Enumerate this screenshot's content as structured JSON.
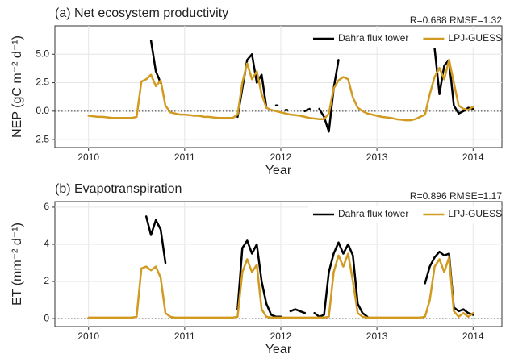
{
  "chart_data": [
    {
      "type": "line",
      "title": "(a) Net ecosystem productivity",
      "annotation": "R=0.688  RMSE=1.32",
      "x_label": "Year",
      "y_label": "NEP (gC m⁻² d⁻¹)",
      "xlim": [
        2009.65,
        2014.3
      ],
      "xticks": [
        2010,
        2011,
        2012,
        2013,
        2014
      ],
      "ylim": [
        -3.2,
        7.5
      ],
      "yticks": [
        -2.5,
        {
          "value": 0,
          "label": "0.0"
        },
        2.5,
        {
          "value": 5,
          "label": "5.0"
        }
      ],
      "grid": true,
      "reference_line": 0,
      "legend": "top-right",
      "x": [
        2010,
        2010.05,
        2010.1,
        2010.15,
        2010.2,
        2010.25,
        2010.3,
        2010.35,
        2010.4,
        2010.45,
        2010.5,
        2010.55,
        2010.6,
        2010.65,
        2010.7,
        2010.75,
        2010.8,
        2010.85,
        2010.9,
        2010.95,
        2011,
        2011.05,
        2011.1,
        2011.15,
        2011.2,
        2011.25,
        2011.3,
        2011.35,
        2011.4,
        2011.45,
        2011.5,
        2011.55,
        2011.6,
        2011.65,
        2011.7,
        2011.75,
        2011.8,
        2011.85,
        2011.9,
        2011.95,
        2012,
        2012.05,
        2012.1,
        2012.15,
        2012.2,
        2012.25,
        2012.3,
        2012.35,
        2012.4,
        2012.45,
        2012.5,
        2012.55,
        2012.6,
        2012.65,
        2012.7,
        2012.75,
        2012.8,
        2012.85,
        2012.9,
        2012.95,
        2013,
        2013.05,
        2013.1,
        2013.15,
        2013.2,
        2013.25,
        2013.3,
        2013.35,
        2013.4,
        2013.45,
        2013.5,
        2013.55,
        2013.6,
        2013.65,
        2013.7,
        2013.75,
        2013.8,
        2013.85,
        2013.9,
        2013.95,
        2014
      ],
      "series": [
        {
          "name": "Dahra flux tower",
          "color": "#000000",
          "values": [
            null,
            null,
            null,
            null,
            null,
            null,
            null,
            null,
            null,
            null,
            null,
            null,
            null,
            6.2,
            3.5,
            2.5,
            null,
            null,
            null,
            null,
            null,
            null,
            null,
            null,
            null,
            null,
            null,
            null,
            null,
            null,
            null,
            -0.5,
            2.0,
            4.5,
            5.0,
            2.5,
            3.2,
            0.3,
            null,
            0.5,
            null,
            0.1,
            null,
            null,
            null,
            0.0,
            0.2,
            null,
            0.2,
            -0.5,
            -1.8,
            2.0,
            4.5,
            null,
            null,
            null,
            null,
            null,
            null,
            null,
            null,
            null,
            null,
            null,
            null,
            null,
            null,
            null,
            null,
            null,
            null,
            null,
            5.5,
            1.5,
            4.0,
            4.5,
            0.5,
            -0.2,
            0.0,
            0.3,
            0.2
          ]
        },
        {
          "name": "LPJ-GUESS",
          "color": "#d19b22",
          "values": [
            -0.4,
            -0.45,
            -0.5,
            -0.5,
            -0.55,
            -0.6,
            -0.6,
            -0.6,
            -0.6,
            -0.6,
            -0.5,
            2.6,
            2.8,
            3.2,
            2.2,
            2.7,
            0.5,
            -0.1,
            -0.2,
            -0.3,
            -0.3,
            -0.35,
            -0.4,
            -0.4,
            -0.5,
            -0.5,
            -0.55,
            -0.6,
            -0.6,
            -0.6,
            -0.6,
            -0.3,
            2.5,
            4.2,
            2.8,
            3.5,
            1.5,
            0.3,
            0.1,
            0.0,
            -0.1,
            -0.2,
            -0.3,
            -0.35,
            -0.4,
            -0.5,
            -0.6,
            -0.65,
            -0.7,
            -0.7,
            -0.2,
            2.0,
            2.7,
            3.0,
            2.8,
            1.2,
            0.3,
            0.0,
            -0.2,
            -0.3,
            -0.4,
            -0.5,
            -0.55,
            -0.6,
            -0.7,
            -0.75,
            -0.8,
            -0.8,
            -0.7,
            -0.5,
            -0.3,
            1.5,
            3.0,
            3.8,
            2.8,
            4.5,
            2.5,
            0.5,
            0.2,
            0.1,
            0.4
          ]
        }
      ]
    },
    {
      "type": "line",
      "title": "(b) Evapotranspiration",
      "annotation": "R=0.896  RMSE=1.17",
      "x_label": "Year",
      "y_label": "ET (mm⁻² d⁻¹)",
      "xlim": [
        2009.65,
        2014.3
      ],
      "xticks": [
        2010,
        2011,
        2012,
        2013,
        2014
      ],
      "ylim": [
        -0.43,
        6.3
      ],
      "yticks": [
        0,
        2,
        4,
        6
      ],
      "grid": true,
      "reference_line": 0,
      "legend": "top-right",
      "x": [
        2010,
        2010.05,
        2010.1,
        2010.15,
        2010.2,
        2010.25,
        2010.3,
        2010.35,
        2010.4,
        2010.45,
        2010.5,
        2010.55,
        2010.6,
        2010.65,
        2010.7,
        2010.75,
        2010.8,
        2010.85,
        2010.9,
        2010.95,
        2011,
        2011.05,
        2011.1,
        2011.15,
        2011.2,
        2011.25,
        2011.3,
        2011.35,
        2011.4,
        2011.45,
        2011.5,
        2011.55,
        2011.6,
        2011.65,
        2011.7,
        2011.75,
        2011.8,
        2011.85,
        2011.9,
        2011.95,
        2012,
        2012.05,
        2012.1,
        2012.15,
        2012.2,
        2012.25,
        2012.3,
        2012.35,
        2012.4,
        2012.45,
        2012.5,
        2012.55,
        2012.6,
        2012.65,
        2012.7,
        2012.75,
        2012.8,
        2012.85,
        2012.9,
        2012.95,
        2013,
        2013.05,
        2013.1,
        2013.15,
        2013.2,
        2013.25,
        2013.3,
        2013.35,
        2013.4,
        2013.45,
        2013.5,
        2013.55,
        2013.6,
        2013.65,
        2013.7,
        2013.75,
        2013.8,
        2013.85,
        2013.9,
        2013.95,
        2014
      ],
      "series": [
        {
          "name": "Dahra flux tower",
          "color": "#000000",
          "values": [
            null,
            null,
            null,
            null,
            null,
            null,
            null,
            null,
            null,
            null,
            null,
            null,
            5.5,
            4.5,
            5.3,
            4.8,
            3.0,
            null,
            null,
            null,
            null,
            null,
            null,
            null,
            null,
            null,
            null,
            null,
            null,
            null,
            null,
            0.5,
            3.8,
            4.2,
            3.5,
            4.0,
            2.0,
            0.8,
            0.2,
            0.1,
            0.1,
            null,
            0.4,
            0.5,
            0.4,
            0.3,
            null,
            0.3,
            0.1,
            0.2,
            2.5,
            3.5,
            4.1,
            3.5,
            4.0,
            3.4,
            0.8,
            0.3,
            0.1,
            null,
            null,
            null,
            null,
            null,
            null,
            null,
            null,
            null,
            null,
            null,
            1.9,
            2.8,
            3.3,
            3.6,
            3.4,
            3.5,
            0.6,
            0.4,
            0.5,
            0.3,
            0.2
          ]
        },
        {
          "name": "LPJ-GUESS",
          "color": "#d19b22",
          "values": [
            0.05,
            0.05,
            0.05,
            0.05,
            0.05,
            0.05,
            0.05,
            0.05,
            0.05,
            0.05,
            0.1,
            2.7,
            2.8,
            2.6,
            2.8,
            2.2,
            0.3,
            0.1,
            0.05,
            0.05,
            0.05,
            0.05,
            0.05,
            0.05,
            0.05,
            0.05,
            0.05,
            0.05,
            0.05,
            0.05,
            0.05,
            0.1,
            2.5,
            3.2,
            2.5,
            2.9,
            0.5,
            0.1,
            0.05,
            0.05,
            0.05,
            0.05,
            0.05,
            0.05,
            0.05,
            0.05,
            0.05,
            0.05,
            0.05,
            0.05,
            0.1,
            2.5,
            3.4,
            2.8,
            3.5,
            2.0,
            0.3,
            0.1,
            0.05,
            0.05,
            0.05,
            0.05,
            0.05,
            0.05,
            0.05,
            0.05,
            0.05,
            0.05,
            0.05,
            0.05,
            0.1,
            1.0,
            2.8,
            3.2,
            2.5,
            3.3,
            0.4,
            0.1,
            0.3,
            0.1,
            0.3
          ]
        }
      ]
    }
  ]
}
